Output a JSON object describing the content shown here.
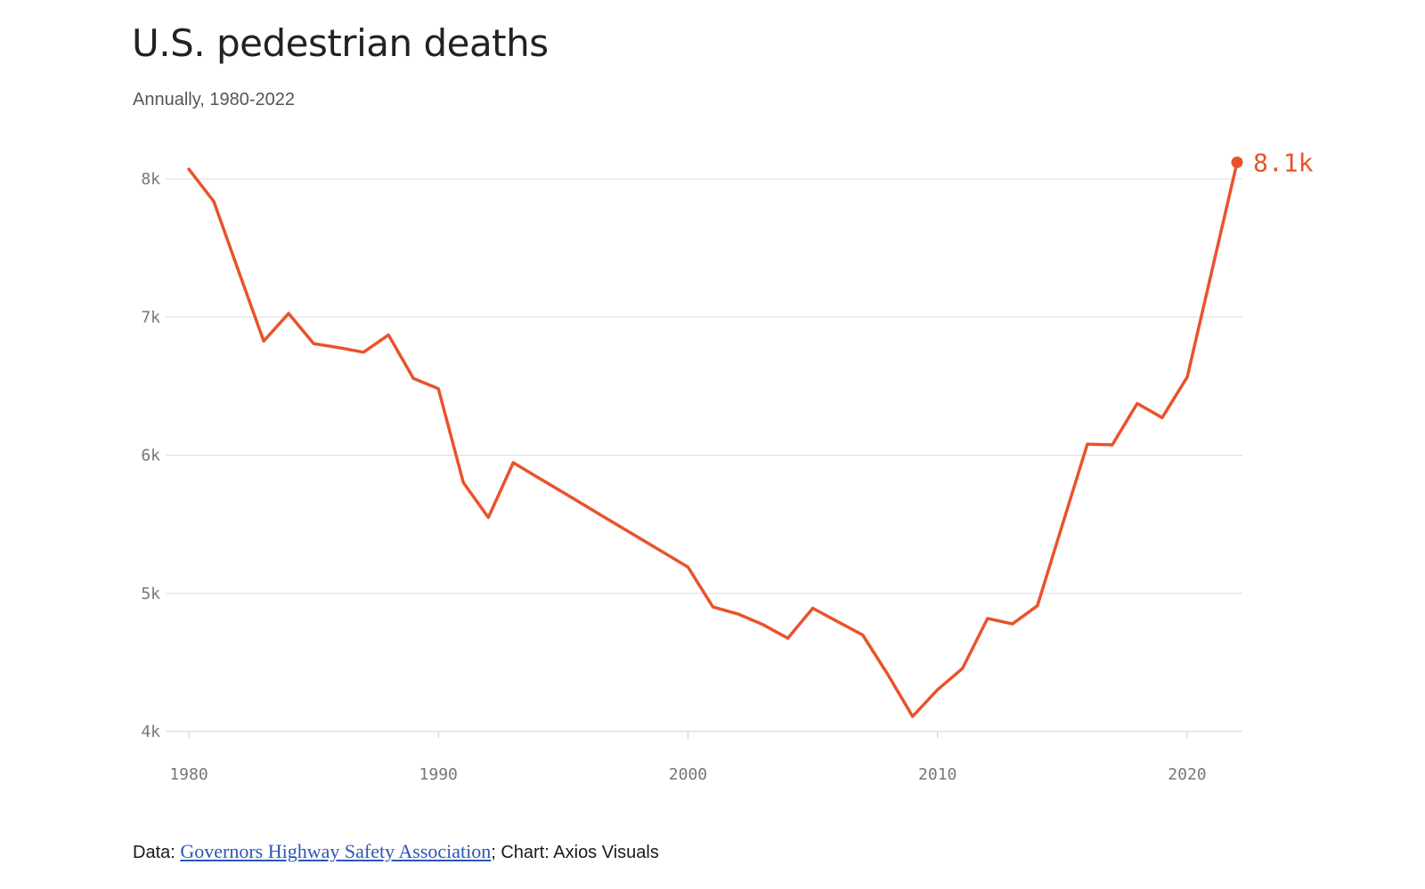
{
  "title": "U.S. pedestrian deaths",
  "subtitle": "Annually, 1980-2022",
  "footer": {
    "data_prefix": "Data: ",
    "source_link_text": "Governors Highway Safety Association",
    "chart_credit": "; Chart: Axios Visuals"
  },
  "colors": {
    "line": "#e8532b",
    "grid": "#dddddd",
    "tick_text": "#777777"
  },
  "chart_data": {
    "type": "line",
    "title": "U.S. pedestrian deaths",
    "subtitle": "Annually, 1980-2022",
    "xlabel": "",
    "ylabel": "",
    "xlim": [
      1980,
      2022
    ],
    "ylim": [
      4000,
      8000
    ],
    "x_ticks": [
      1980,
      1990,
      2000,
      2010,
      2020
    ],
    "x_tick_labels": [
      "1980",
      "1990",
      "2000",
      "2010",
      "2020"
    ],
    "y_ticks": [
      4000,
      5000,
      6000,
      7000,
      8000
    ],
    "y_tick_labels": [
      "4k",
      "5k",
      "6k",
      "7k",
      "8k"
    ],
    "grid": true,
    "end_label": "8.1k",
    "series": [
      {
        "x": [
          1980,
          1981,
          1982,
          1983,
          1984,
          1985,
          1986,
          1987,
          1988,
          1989,
          1990,
          1991,
          1992,
          1993,
          1994,
          1995,
          1996,
          1997,
          1998,
          1999,
          2000,
          2001,
          2002,
          2003,
          2004,
          2005,
          2006,
          2007,
          2008,
          2009,
          2010,
          2011,
          2012,
          2013,
          2014,
          2015,
          2016,
          2017,
          2018,
          2019,
          2020,
          2021,
          2022
        ],
        "values": [
          8070,
          7837,
          7331,
          6826,
          7026,
          6808,
          6779,
          6745,
          6870,
          6556,
          6482,
          5801,
          5549,
          5946,
          5838,
          5730,
          5622,
          5514,
          5406,
          5298,
          5190,
          4901,
          4851,
          4774,
          4675,
          4892,
          4795,
          4699,
          4414,
          4109,
          4302,
          4457,
          4818,
          4779,
          4910,
          5495,
          6080,
          6075,
          6374,
          6272,
          6565,
          7342,
          8120
        ]
      }
    ]
  }
}
